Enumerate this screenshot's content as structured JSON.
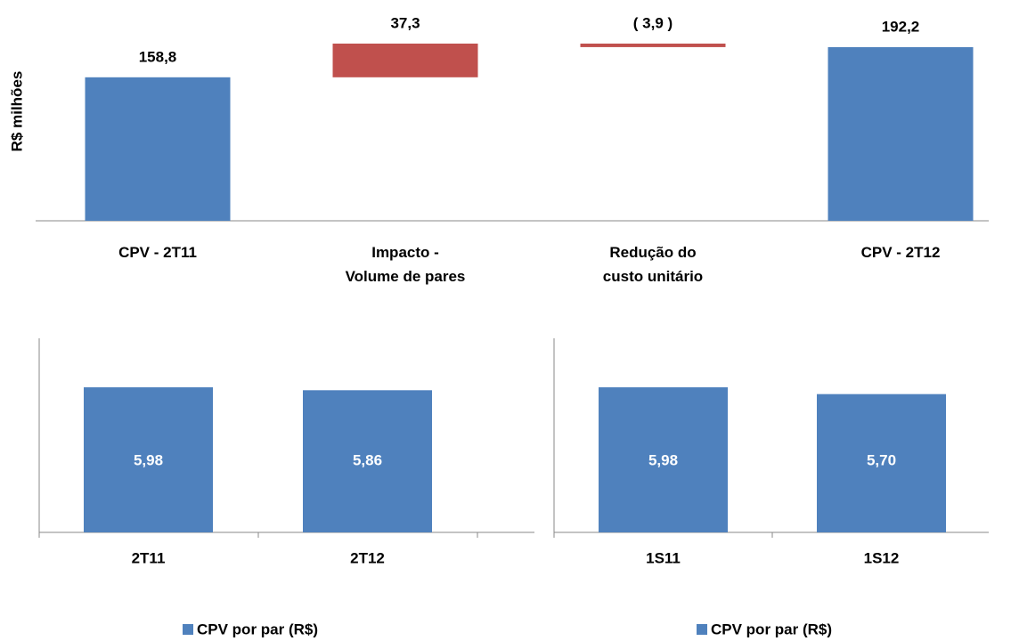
{
  "chart_data": [
    {
      "type": "waterfall",
      "ylabel": "R$ milhões",
      "categories": [
        "CPV - 2T11",
        "Impacto -\nVolume de pares",
        "Redução do\ncusto unitário",
        "CPV - 2T12"
      ],
      "values": [
        158.8,
        37.3,
        -3.9,
        192.2
      ],
      "value_labels": [
        "158,8",
        "37,3",
        "( 3,9 )",
        "192,2"
      ],
      "measure": [
        "absolute",
        "relative",
        "relative",
        "total"
      ],
      "color": "#4f81bd",
      "delta_color": "#c0504d",
      "ylim": [
        0,
        200
      ]
    },
    {
      "type": "bar",
      "categories": [
        "2T11",
        "2T12"
      ],
      "series": [
        {
          "name": "CPV por par (R$)",
          "color": "#4f81bd",
          "values": [
            5.98,
            5.86
          ],
          "value_labels": [
            "5,98",
            "5,86"
          ]
        }
      ],
      "ylim": [
        0,
        8
      ]
    },
    {
      "type": "bar",
      "categories": [
        "1S11",
        "1S12"
      ],
      "series": [
        {
          "name": "CPV por par (R$)",
          "color": "#4f81bd",
          "values": [
            5.98,
            5.7
          ],
          "value_labels": [
            "5,98",
            "5,70"
          ]
        }
      ],
      "ylim": [
        0,
        8
      ]
    }
  ]
}
